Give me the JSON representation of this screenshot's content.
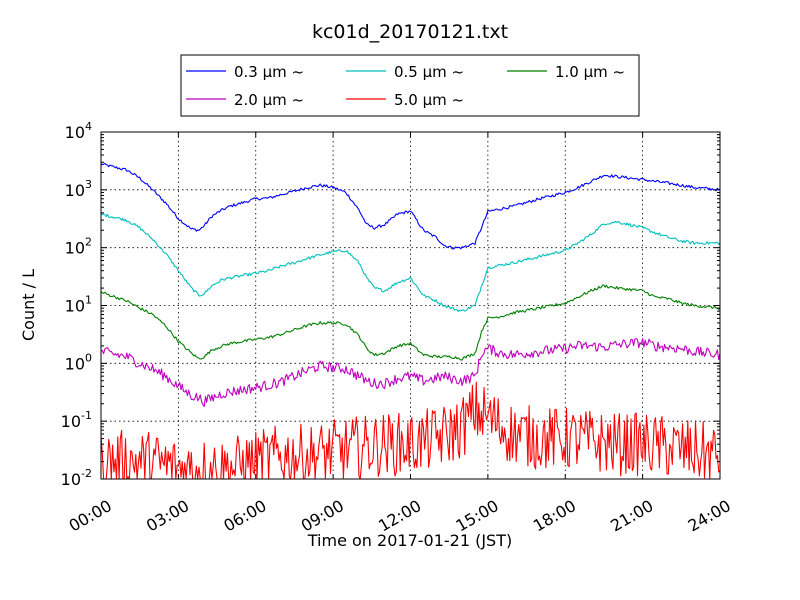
{
  "chart_data": {
    "type": "line",
    "title": "kc01d_20170121.txt",
    "xlabel": "Time on 2017-01-21 (JST)",
    "ylabel": "Count / L",
    "xlim": [
      0,
      24
    ],
    "ylim": [
      0.01,
      10000
    ],
    "yscale": "log",
    "grid": true,
    "legend_position": "top-center, above plot",
    "x_tick_labels": [
      "00:00",
      "03:00",
      "06:00",
      "09:00",
      "12:00",
      "15:00",
      "18:00",
      "21:00",
      "24:00"
    ],
    "y_tick_labels": [
      {
        "base": "10",
        "exp": "-2"
      },
      {
        "base": "10",
        "exp": "-1"
      },
      {
        "base": "10",
        "exp": "0"
      },
      {
        "base": "10",
        "exp": "1"
      },
      {
        "base": "10",
        "exp": "2"
      },
      {
        "base": "10",
        "exp": "3"
      },
      {
        "base": "10",
        "exp": "4"
      }
    ],
    "legend_columns": 3,
    "series": [
      {
        "name": "0.3 μm ~",
        "color": "#0000ff",
        "x": [
          0,
          1,
          1.5,
          2,
          2.5,
          3,
          3.5,
          3.8,
          4,
          4.3,
          4.7,
          5,
          5.5,
          6,
          6.5,
          7,
          7.5,
          8,
          8.5,
          9,
          9.5,
          10,
          10.3,
          10.6,
          11,
          11.5,
          12,
          12.5,
          13,
          13.3,
          13.6,
          14,
          14.5,
          14.8,
          15,
          15.5,
          16,
          17,
          18,
          18.5,
          19,
          19.5,
          20,
          20.5,
          21,
          21.5,
          22,
          22.5,
          23,
          24
        ],
        "y": [
          2800,
          2200,
          1600,
          1000,
          600,
          320,
          210,
          200,
          240,
          350,
          450,
          520,
          600,
          700,
          720,
          830,
          950,
          1100,
          1200,
          1100,
          900,
          450,
          250,
          220,
          250,
          380,
          430,
          200,
          150,
          110,
          100,
          100,
          120,
          250,
          420,
          470,
          520,
          700,
          900,
          1100,
          1400,
          1800,
          1700,
          1600,
          1500,
          1400,
          1300,
          1200,
          1100,
          1000
        ]
      },
      {
        "name": "0.5 μm ~",
        "color": "#00bfbf",
        "x": [
          0,
          1,
          1.5,
          2,
          2.5,
          3,
          3.5,
          3.8,
          4,
          4.3,
          4.7,
          5,
          5.5,
          6,
          6.5,
          7,
          7.5,
          8,
          8.5,
          9,
          9.5,
          10,
          10.3,
          10.6,
          11,
          11.5,
          12,
          12.5,
          13,
          13.3,
          13.6,
          14,
          14.5,
          14.8,
          15,
          15.5,
          16,
          17,
          18,
          18.5,
          19,
          19.5,
          20,
          20.5,
          21,
          21.5,
          22,
          22.5,
          23,
          24
        ],
        "y": [
          380,
          300,
          220,
          140,
          80,
          40,
          20,
          15,
          16,
          22,
          28,
          30,
          33,
          36,
          40,
          48,
          55,
          65,
          75,
          85,
          90,
          55,
          30,
          20,
          18,
          25,
          30,
          15,
          12,
          10,
          9,
          8,
          10,
          25,
          45,
          50,
          55,
          70,
          90,
          120,
          170,
          260,
          280,
          250,
          220,
          180,
          150,
          130,
          120,
          120
        ]
      },
      {
        "name": "1.0 μm ~",
        "color": "#008000",
        "x": [
          0,
          1,
          1.5,
          2,
          2.5,
          3,
          3.5,
          3.8,
          4,
          4.3,
          4.7,
          5,
          5.5,
          6,
          6.5,
          7,
          7.5,
          8,
          8.5,
          9,
          9.5,
          10,
          10.3,
          10.6,
          11,
          11.5,
          12,
          12.5,
          13,
          13.3,
          13.6,
          14,
          14.5,
          14.8,
          15,
          15.5,
          16,
          17,
          18,
          18.5,
          19,
          19.5,
          20,
          20.5,
          21,
          21.5,
          22,
          22.5,
          23,
          24
        ],
        "y": [
          17,
          12,
          9,
          7,
          4.5,
          2.4,
          1.5,
          1.2,
          1.3,
          1.7,
          2,
          2.2,
          2.4,
          2.6,
          2.8,
          3.2,
          3.8,
          4.5,
          5,
          5,
          4.8,
          3,
          1.8,
          1.4,
          1.5,
          2,
          2.2,
          1.4,
          1.3,
          1.3,
          1.3,
          1.2,
          1.5,
          4,
          6,
          6.5,
          7.5,
          9,
          11,
          14,
          18,
          22,
          20,
          19,
          18,
          14,
          13,
          11,
          10,
          9
        ]
      },
      {
        "name": "2.0 μm ~",
        "color": "#bf00bf",
        "x": [
          0,
          1,
          1.5,
          2,
          2.5,
          3,
          3.5,
          3.8,
          4,
          4.3,
          4.7,
          5,
          5.5,
          6,
          6.5,
          7,
          7.5,
          8,
          8.5,
          9,
          9.5,
          10,
          10.3,
          10.6,
          11,
          11.5,
          12,
          12.5,
          13,
          13.3,
          13.6,
          14,
          14.5,
          14.8,
          15,
          15.5,
          16,
          17,
          18,
          18.5,
          19,
          19.5,
          20,
          20.5,
          21,
          21.5,
          22,
          22.5,
          23,
          24
        ],
        "y": [
          1.6,
          1.3,
          1,
          0.8,
          0.6,
          0.4,
          0.28,
          0.25,
          0.22,
          0.25,
          0.3,
          0.32,
          0.35,
          0.38,
          0.42,
          0.48,
          0.6,
          0.75,
          0.9,
          0.85,
          0.8,
          0.6,
          0.5,
          0.45,
          0.45,
          0.55,
          0.6,
          0.5,
          0.55,
          0.6,
          0.55,
          0.5,
          0.6,
          1.6,
          1.8,
          1.5,
          1.4,
          1.6,
          1.8,
          2,
          2,
          1.9,
          2.1,
          2.2,
          2.3,
          2,
          1.9,
          1.8,
          1.6,
          1.4
        ]
      },
      {
        "name": "5.0 μm ~",
        "color": "#ff0000",
        "x": [
          0,
          1,
          2,
          3,
          4,
          5,
          6,
          7,
          8,
          9,
          10,
          11,
          12,
          13,
          13.5,
          14,
          14.5,
          15,
          15.5,
          16,
          17,
          18,
          19,
          20,
          21,
          22,
          23,
          24
        ],
        "y": [
          0.02,
          0.02,
          0.02,
          0.015,
          0.015,
          0.015,
          0.02,
          0.025,
          0.025,
          0.03,
          0.035,
          0.04,
          0.04,
          0.05,
          0.06,
          0.08,
          0.15,
          0.12,
          0.08,
          0.06,
          0.05,
          0.05,
          0.045,
          0.04,
          0.04,
          0.035,
          0.03,
          0.025
        ],
        "noisy": true
      }
    ]
  }
}
